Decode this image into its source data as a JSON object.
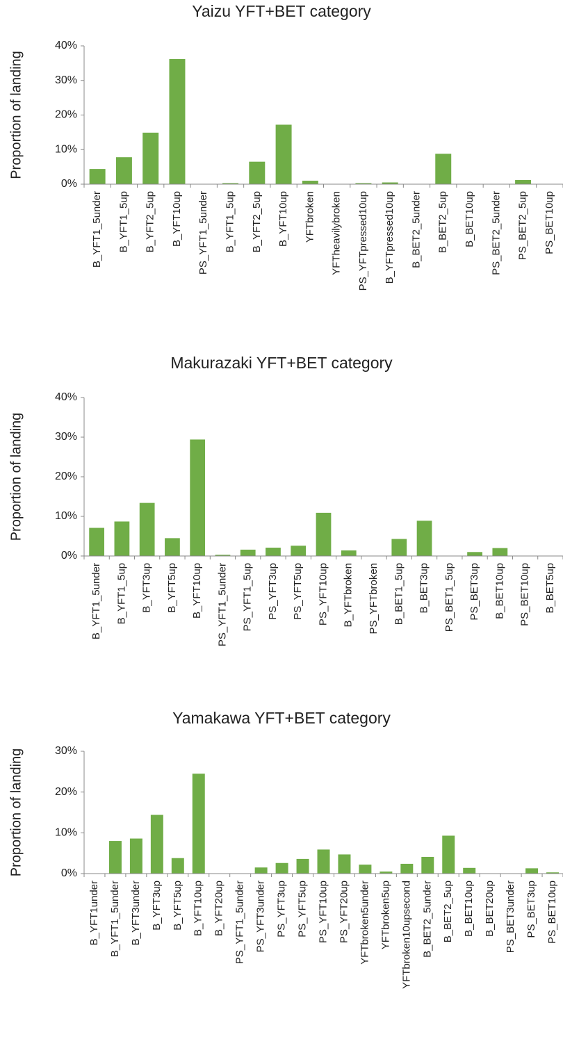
{
  "chart_data": [
    {
      "type": "bar",
      "title": "Yaizu YFT+BET category",
      "ylabel": "Proportion of landing",
      "color": "#70ad47",
      "categories": [
        "B_YFT1_5under",
        "B_YFT1_5up",
        "B_YFT2_5up",
        "B_YFT10up",
        "PS_YFT1_5under",
        "B_YFT1_5up",
        "B_YFT2_5up",
        "B_YFT10up",
        "YFTbroken",
        "YFTheavilybroken",
        "PS_YFTpressed10up",
        "B_YFTpressed10up",
        "B_BET2_5under",
        "B_BET2_5up",
        "B_BET10up",
        "PS_BET2_5under",
        "PS_BET2_5up",
        "PS_BET10up"
      ],
      "values": [
        4.4,
        7.8,
        14.9,
        36.2,
        0,
        0.3,
        6.5,
        17.2,
        1.0,
        0,
        0.3,
        0.5,
        0,
        8.8,
        0,
        0,
        1.2,
        0
      ],
      "ylim": [
        0,
        40
      ],
      "yticks": [
        {
          "value": 0,
          "label": "0%"
        },
        {
          "value": 10,
          "label": "10%"
        },
        {
          "value": 20,
          "label": "20%"
        },
        {
          "value": 30,
          "label": "30%"
        },
        {
          "value": 40,
          "label": "40%"
        }
      ]
    },
    {
      "type": "bar",
      "title": "Makurazaki YFT+BET category",
      "ylabel": "Proportion of landing",
      "color": "#70ad47",
      "categories": [
        "B_YFT1_5under",
        "B_YFT1_5up",
        "B_YFT3up",
        "B_YFT5up",
        "B_YFT10up",
        "PS_YFT1_5under",
        "PS_YFT1_5up",
        "PS_YFT3up",
        "PS_YFT5up",
        "PS_YFT10up",
        "B_YFTbroken",
        "PS_YFTbroken",
        "B_BET1_5up",
        "B_BET3up",
        "PS_BET1_5up",
        "PS_BET3up",
        "B_BET10up",
        "PS_BET10up",
        "B_BET5up"
      ],
      "values": [
        7.1,
        8.7,
        13.4,
        4.5,
        29.4,
        0.3,
        1.6,
        2.1,
        2.6,
        10.9,
        1.4,
        0,
        4.3,
        8.9,
        0,
        1.0,
        2.0,
        0,
        0
      ],
      "ylim": [
        0,
        40
      ],
      "yticks": [
        {
          "value": 0,
          "label": "0%"
        },
        {
          "value": 10,
          "label": "10%"
        },
        {
          "value": 20,
          "label": "20%"
        },
        {
          "value": 30,
          "label": "30%"
        },
        {
          "value": 40,
          "label": "40%"
        }
      ]
    },
    {
      "type": "bar",
      "title": "Yamakawa YFT+BET category",
      "ylabel": "Proportion of landing",
      "color": "#70ad47",
      "categories": [
        "B_YFT1under",
        "B_YFT1_5under",
        "B_YFT3under",
        "B_YFT3up",
        "B_YFT5up",
        "B_YFT10up",
        "B_YFT20up",
        "PS_YFT1_5under",
        "PS_YFT3under",
        "PS_YFT3up",
        "PS_YFT5up",
        "PS_YFT10up",
        "PS_YFT20up",
        "YFTbroken5under",
        "YFTbroken5up",
        "YFTbroken10upsecond",
        "B_BET2_5under",
        "B_BET2_5up",
        "B_BET10up",
        "B_BET20up",
        "PS_BET3under",
        "PS_BET3up",
        "PS_BET10up"
      ],
      "values": [
        0,
        8.0,
        8.6,
        14.4,
        3.8,
        24.5,
        0,
        0,
        1.5,
        2.6,
        3.6,
        5.9,
        4.7,
        2.2,
        0.5,
        2.4,
        4.1,
        9.3,
        1.4,
        0,
        0,
        1.3,
        0.3
      ],
      "ylim": [
        0,
        30
      ],
      "yticks": [
        {
          "value": 0,
          "label": "0%"
        },
        {
          "value": 10,
          "label": "10%"
        },
        {
          "value": 20,
          "label": "20%"
        },
        {
          "value": 30,
          "label": "30%"
        }
      ]
    }
  ]
}
